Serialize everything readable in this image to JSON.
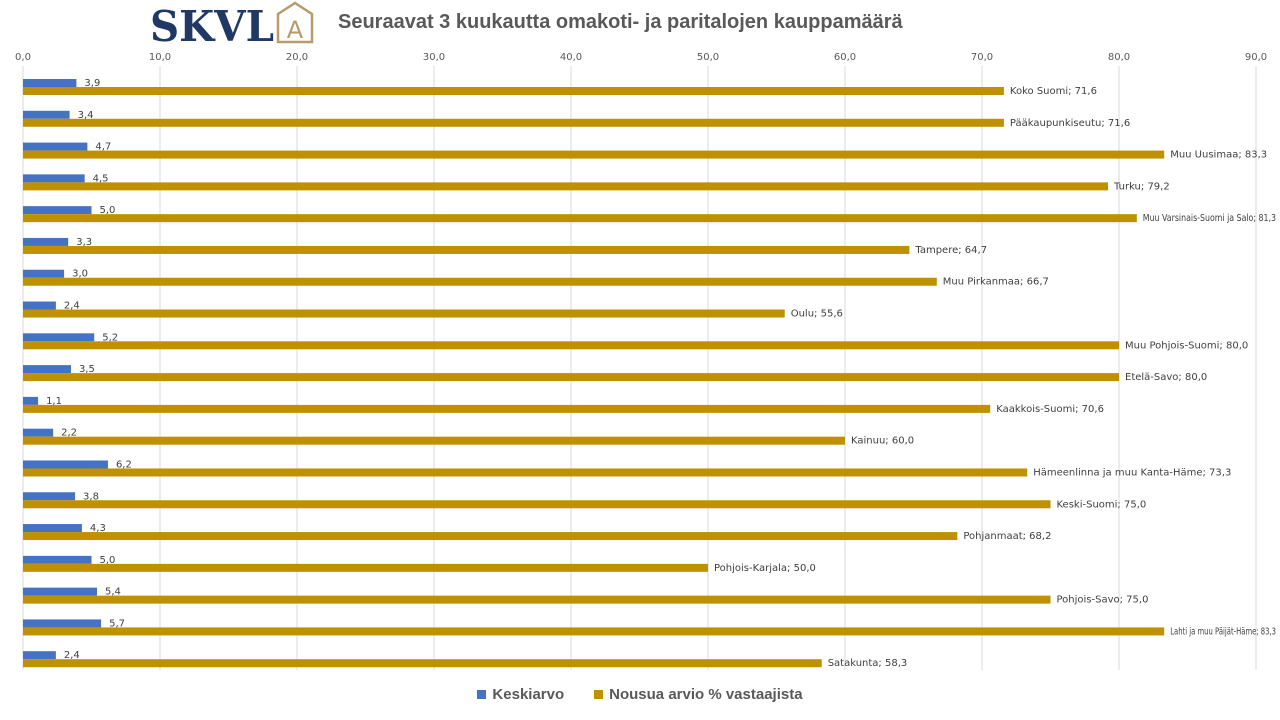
{
  "brand": {
    "logo_text": "SKVL",
    "logo_mark": "A",
    "primary_color": "#1f3864",
    "accent_color": "#b89a6b"
  },
  "chart_data": {
    "type": "bar",
    "orientation": "horizontal",
    "title": "Seuraavat 3 kuukautta omakoti- ja paritalojen kauppamäärä",
    "xlim": [
      0,
      90
    ],
    "xticks": [
      0,
      10,
      20,
      30,
      40,
      50,
      60,
      70,
      80,
      90
    ],
    "xtick_labels": [
      "0,0",
      "10,0",
      "20,0",
      "30,0",
      "40,0",
      "50,0",
      "60,0",
      "70,0",
      "80,0",
      "90,0"
    ],
    "x_axis_position": "top",
    "grid": true,
    "legend_position": "bottom",
    "categories": [
      "Koko Suomi",
      "Pääkaupunkiseutu",
      "Muu Uusimaa",
      "Turku",
      "Muu Varsinais-Suomi ja Salo",
      "Tampere",
      "Muu Pirkanmaa",
      "Oulu",
      "Muu Pohjois-Suomi",
      "Etelä-Savo",
      "Kaakkois-Suomi",
      "Kainuu",
      "Hämeenlinna ja muu Kanta-Häme",
      "Keski-Suomi",
      "Pohjanmaat",
      "Pohjois-Karjala",
      "Pohjois-Savo",
      "Lahti ja muu Päijät-Häme",
      "Satakunta"
    ],
    "series": [
      {
        "name": "Keskiarvo",
        "color": "#4472c4",
        "values": [
          3.9,
          3.4,
          4.7,
          4.5,
          5.0,
          3.3,
          3.0,
          2.4,
          5.2,
          3.5,
          1.1,
          2.2,
          6.2,
          3.8,
          4.3,
          5.0,
          5.4,
          5.7,
          2.4
        ],
        "labels": [
          "3,9",
          "3,4",
          "4,7",
          "4,5",
          "5,0",
          "3,3",
          "3,0",
          "2,4",
          "5,2",
          "3,5",
          "1,1",
          "2,2",
          "6,2",
          "3,8",
          "4,3",
          "5,0",
          "5,4",
          "5,7",
          "2,4"
        ]
      },
      {
        "name": "Nousua arvio % vastaajista",
        "color": "#bf9000",
        "values": [
          71.6,
          71.6,
          83.3,
          79.2,
          81.3,
          64.7,
          66.7,
          55.6,
          80.0,
          80.0,
          70.6,
          60.0,
          73.3,
          75.0,
          68.2,
          50.0,
          75.0,
          83.3,
          58.3
        ],
        "labels": [
          "Koko Suomi; 71,6",
          "Pääkaupunkiseutu; 71,6",
          "Muu Uusimaa; 83,3",
          "Turku; 79,2",
          "Muu Varsinais-Suomi ja Salo; 81,3",
          "Tampere; 64,7",
          "Muu Pirkanmaa; 66,7",
          "Oulu; 55,6",
          "Muu Pohjois-Suomi; 80,0",
          "Etelä-Savo; 80,0",
          "Kaakkois-Suomi; 70,6",
          "Kainuu; 60,0",
          "Hämeenlinna ja muu Kanta-Häme; 73,3",
          "Keski-Suomi; 75,0",
          "Pohjanmaat; 68,2",
          "Pohjois-Karjala; 50,0",
          "Pohjois-Savo; 75,0",
          "Lahti ja muu Päijät-Häme; 83,3",
          "Satakunta; 58,3"
        ]
      }
    ]
  }
}
